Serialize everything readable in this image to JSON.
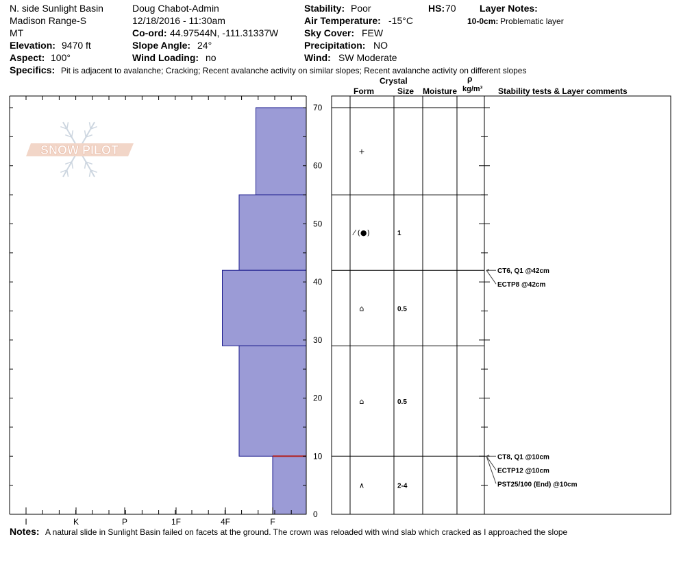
{
  "header": {
    "location": "N. side Sunlight Basin",
    "range": "Madison Range-S",
    "state": "MT",
    "elevation_label": "Elevation:",
    "elevation_value": "9470 ft",
    "aspect_label": "Aspect:",
    "aspect_value": "100°",
    "observer": "Doug Chabot-Admin",
    "datetime": "12/18/2016 - 11:30am",
    "coord_label": "Co-ord:",
    "coord_value": "44.97544N, -111.31337W",
    "slope_label": "Slope Angle:",
    "slope_value": "24°",
    "windload_label": "Wind Loading:",
    "windload_value": "no",
    "stability_label": "Stability:",
    "stability_value": "Poor",
    "airtemp_label": "Air Temperature:",
    "airtemp_value": "-15°C",
    "sky_label": "Sky Cover:",
    "sky_value": "FEW",
    "precip_label": "Precipitation:",
    "precip_value": "NO",
    "wind_label": "Wind:",
    "wind_value": "SW Moderate",
    "hs_label": "HS:",
    "hs_value": "70",
    "layer_notes_label": "Layer Notes:",
    "layer_note_depth": "10-0cm:",
    "layer_note_text": "Problematic layer",
    "specifics_label": "Specifics:",
    "specifics_value": "Pit is adjacent to avalanche;  Cracking;  Recent avalanche activity on similar slopes;  Recent avalanche activity on different slopes"
  },
  "notes": {
    "label": "Notes:",
    "text": "A natural slide in Sunlight Basin failed on facets at the ground. The crown was reloaded with wind slab which cracked as I approached the slope"
  },
  "logo_text": "SNOW PILOT",
  "colors": {
    "hardness_fill": "#9b9bd6",
    "hardness_stroke": "#1a1a8c",
    "weak_layer": "#b22222"
  },
  "table_headers": {
    "crystal": "Crystal",
    "form": "Form",
    "size": "Size",
    "moisture": "Moisture",
    "rho": "ρ",
    "density": "kg/m³",
    "stability": "Stability tests & Layer comments"
  },
  "chart_data": {
    "type": "bar",
    "title": "",
    "xlabel": "",
    "ylabel": "",
    "ylim": [
      0,
      70
    ],
    "yticks": [
      0,
      10,
      20,
      30,
      40,
      50,
      60,
      70
    ],
    "hardness_categories": [
      "I",
      "K",
      "P",
      "1F",
      "4F",
      "F"
    ],
    "hardness_scale_note": "F = fist (1 unit), 4F (2), 1F (3), P (4), K (5), I (6)",
    "layers": [
      {
        "top": 70,
        "bottom": 55,
        "hardness_value": 1.5,
        "form": "+",
        "size": ""
      },
      {
        "top": 55,
        "bottom": 42,
        "hardness_value": 2.0,
        "form": "⁄ (●)",
        "size": "1"
      },
      {
        "top": 42,
        "bottom": 29,
        "hardness_value": 2.5,
        "form": "⌂",
        "size": "0.5"
      },
      {
        "top": 29,
        "bottom": 10,
        "hardness_value": 2.0,
        "form": "⌂",
        "size": "0.5"
      },
      {
        "top": 10,
        "bottom": 0,
        "hardness_value": 1.0,
        "form": "∧",
        "size": "2-4"
      }
    ],
    "weak_layer_depth": 10,
    "stability_tests": [
      {
        "text": "CT6, Q1 @42cm",
        "depth": 42
      },
      {
        "text": "ECTP8 @42cm",
        "depth": 42
      },
      {
        "text": "CT8, Q1 @10cm",
        "depth": 10
      },
      {
        "text": "ECTP12 @10cm",
        "depth": 10
      },
      {
        "text": "PST25/100 (End) @10cm",
        "depth": 10
      }
    ]
  }
}
